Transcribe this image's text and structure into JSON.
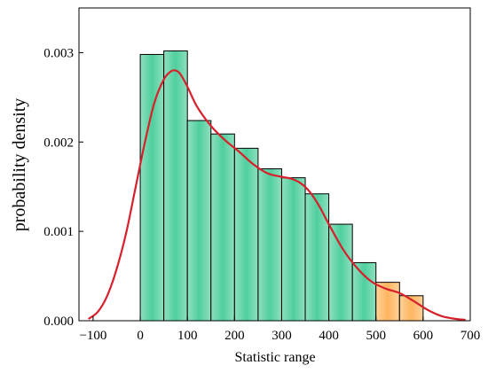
{
  "chart_data": {
    "type": "bar",
    "xlabel": "Statistic range",
    "ylabel": "probability density",
    "xlim": [
      -130,
      700
    ],
    "ylim": [
      0,
      0.0035
    ],
    "xticks": [
      -100,
      0,
      100,
      200,
      300,
      400,
      500,
      600,
      700
    ],
    "yticks": [
      0.0,
      0.001,
      0.002,
      0.003
    ],
    "ytick_labels": [
      "0.000",
      "0.001",
      "0.002",
      "0.003"
    ],
    "bin_edges": [
      0,
      50,
      100,
      150,
      200,
      250,
      300,
      350,
      400,
      450,
      500,
      550,
      600
    ],
    "values": [
      0.00298,
      0.00302,
      0.00224,
      0.00209,
      0.00193,
      0.0017,
      0.0016,
      0.00142,
      0.00108,
      0.00065,
      0.00043,
      0.00028
    ],
    "highlighted_bins": [
      10,
      11
    ],
    "colors": {
      "bar": "#5fd3a6",
      "bar_highlight": "#ffbf72",
      "kde_line": "#d7202b",
      "bar_edge": "#000000"
    },
    "kde_curve": {
      "x": [
        -110,
        -90,
        -70,
        -50,
        -30,
        -10,
        10,
        30,
        50,
        65,
        75,
        85,
        100,
        120,
        150,
        180,
        210,
        240,
        270,
        300,
        320,
        340,
        360,
        380,
        400,
        430,
        460,
        490,
        520,
        550,
        580,
        610,
        640,
        670,
        690
      ],
      "y": [
        2e-05,
        0.0001,
        0.00028,
        0.00058,
        0.00098,
        0.00149,
        0.002,
        0.00244,
        0.0027,
        0.00279,
        0.0028,
        0.00276,
        0.00262,
        0.0024,
        0.00218,
        0.00202,
        0.00189,
        0.00175,
        0.00165,
        0.00161,
        0.00159,
        0.00154,
        0.00144,
        0.00128,
        0.00108,
        0.0008,
        0.00059,
        0.00044,
        0.00036,
        0.00031,
        0.00022,
        0.00012,
        5e-05,
        2e-05,
        1e-05
      ]
    }
  }
}
